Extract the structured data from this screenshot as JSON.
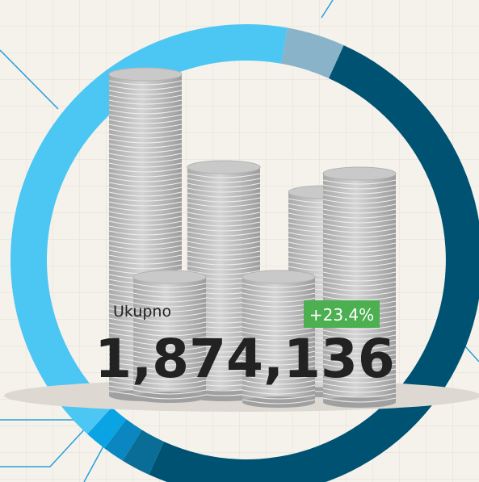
{
  "chart_data": {
    "type": "donut",
    "values": [
      4,
      50,
      2,
      1.5,
      1.5,
      41
    ],
    "colors": [
      "#89b3c8",
      "#005272",
      "#0a6d96",
      "#0a86c0",
      "#0aa3e3",
      "#4cc6f2"
    ],
    "label": "Ukupno",
    "total": "1,874,136",
    "change": "+23.4%"
  }
}
